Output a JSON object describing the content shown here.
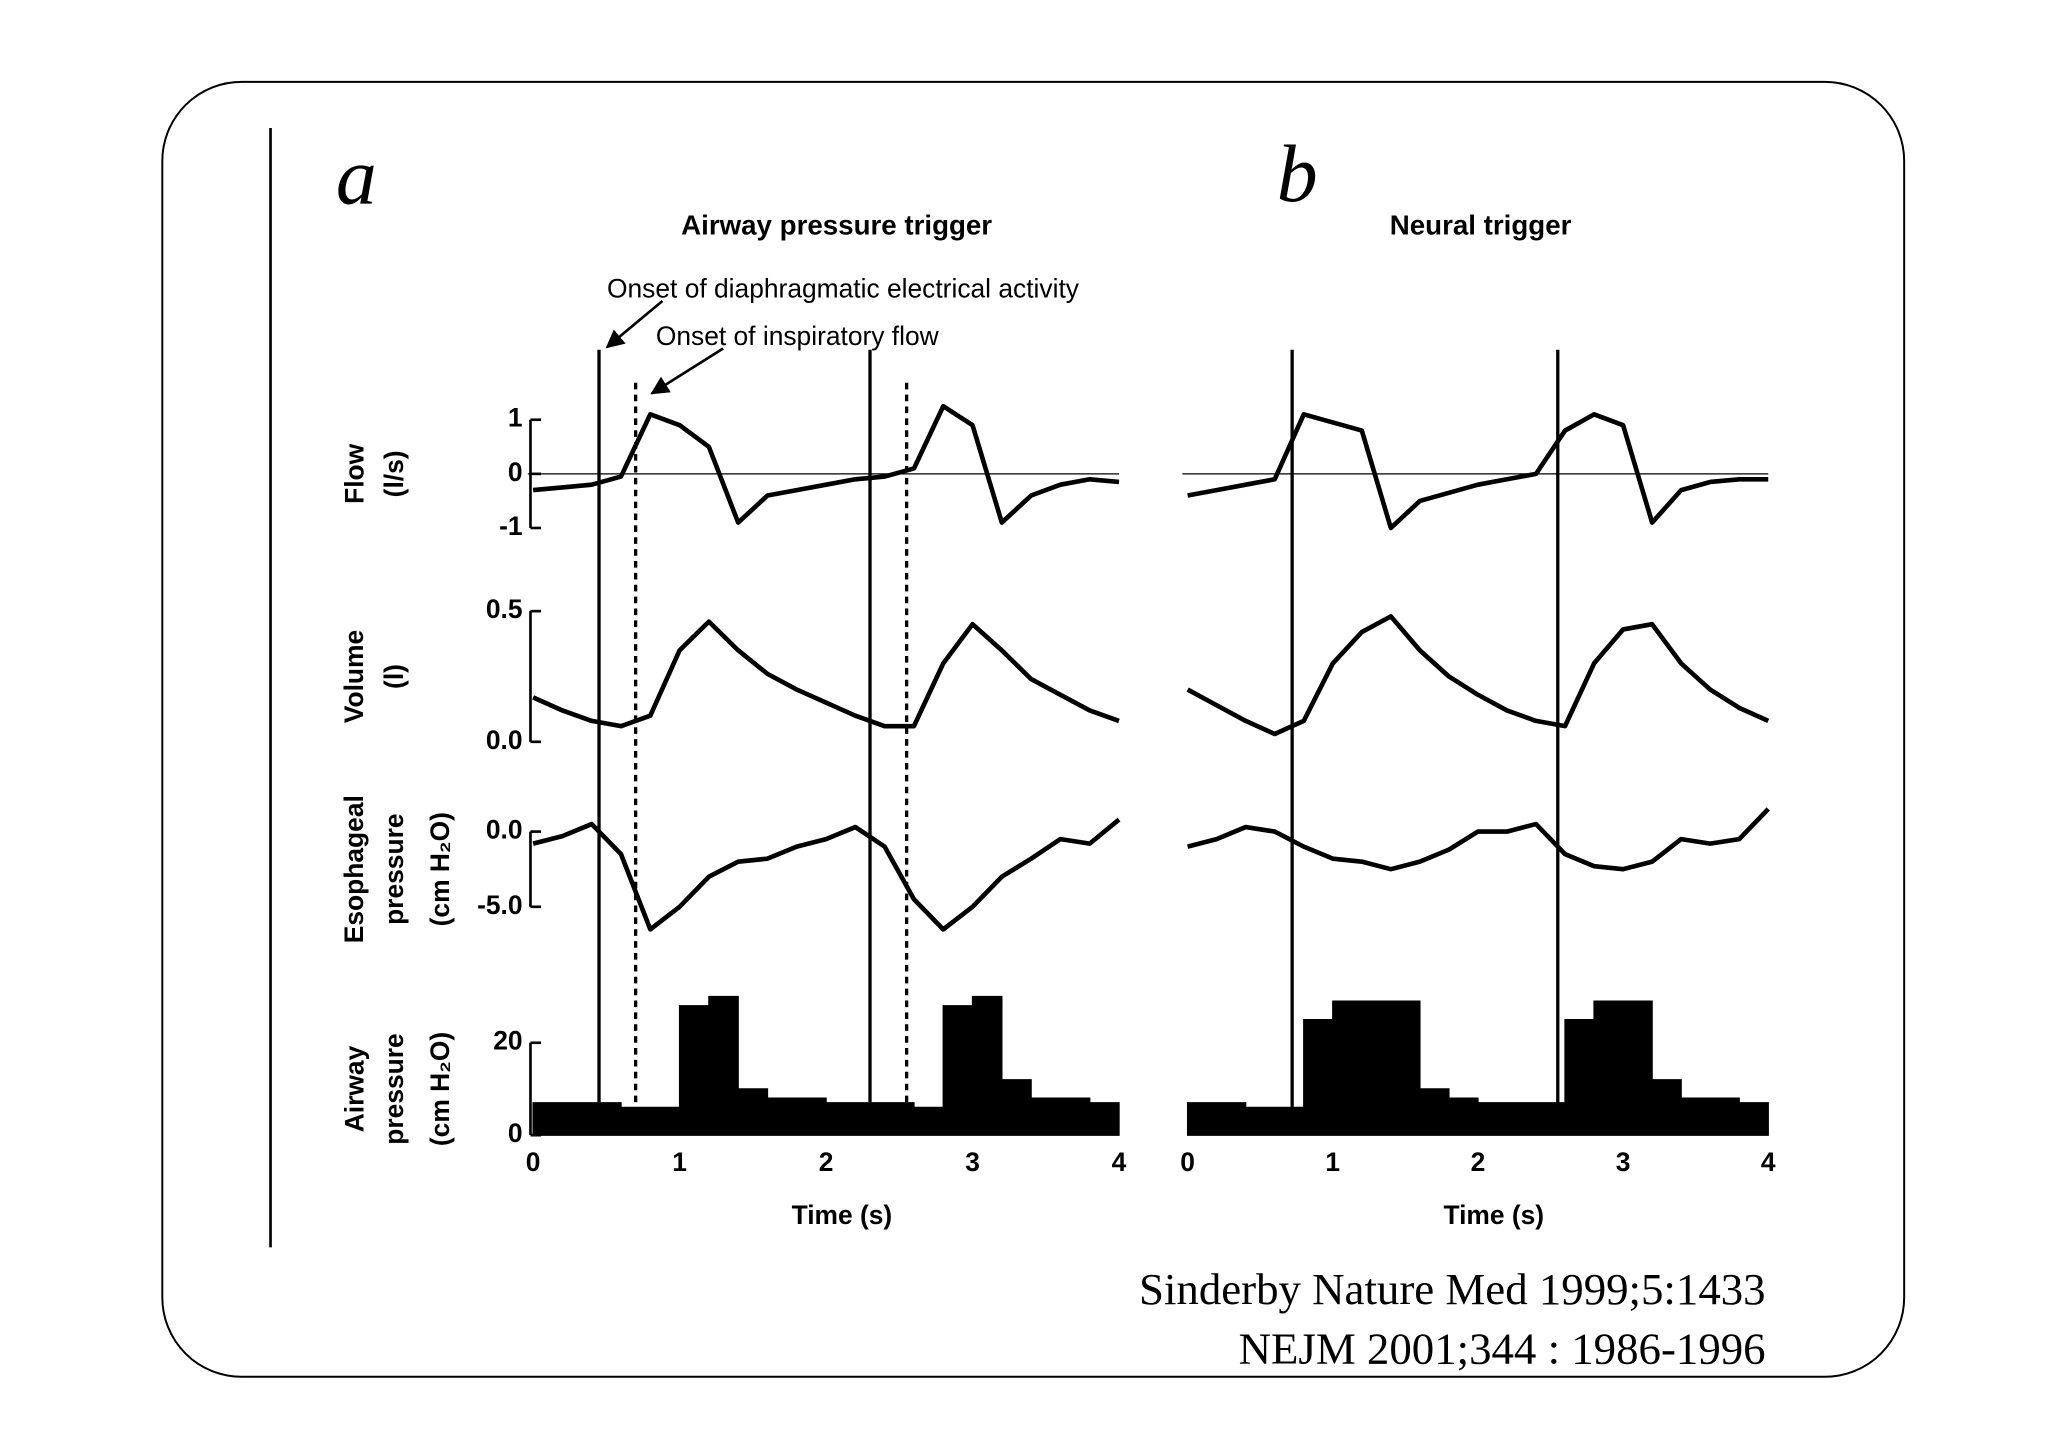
{
  "chart_data": {
    "type": "line",
    "xlim": [
      0,
      4
    ],
    "xticks": [
      0,
      1,
      2,
      3,
      4
    ],
    "xlabel": "Time (s)",
    "x": [
      0,
      0.2,
      0.4,
      0.6,
      0.8,
      1.0,
      1.2,
      1.4,
      1.6,
      1.8,
      2.0,
      2.2,
      2.4,
      2.6,
      2.8,
      3.0,
      3.2,
      3.4,
      3.6,
      3.8,
      4.0
    ],
    "color": "#000000",
    "rows": [
      {
        "label": [
          "Flow",
          "(l/s)"
        ],
        "ylim": [
          -1,
          1
        ],
        "yticks": [
          1,
          0,
          -1
        ],
        "style": "line"
      },
      {
        "label": [
          "Volume",
          "(l)"
        ],
        "ylim": [
          0,
          0.5
        ],
        "yticks": [
          0.5,
          {
            "value": 0,
            "label": "0.0"
          }
        ],
        "style": "line"
      },
      {
        "label": [
          "Esophageal",
          "pressure",
          "(cm H₂O)"
        ],
        "ylim": [
          -5,
          0
        ],
        "yticks": [
          {
            "value": 0,
            "label": "0.0"
          },
          {
            "value": -5,
            "label": "-5.0"
          }
        ],
        "style": "line"
      },
      {
        "label": [
          "Airway",
          "pressure",
          "(cm H₂O)"
        ],
        "ylim": [
          0,
          20
        ],
        "yticks": [
          20,
          0
        ],
        "style": "step-area"
      }
    ],
    "panels": [
      {
        "letter": "a",
        "title": "Airway pressure trigger",
        "series": [
          {
            "values": [
              -0.3,
              -0.25,
              -0.2,
              -0.05,
              1.1,
              0.9,
              0.5,
              -0.9,
              -0.4,
              -0.3,
              -0.2,
              -0.1,
              -0.05,
              0.1,
              1.25,
              0.9,
              -0.9,
              -0.4,
              -0.2,
              -0.1,
              -0.15
            ]
          },
          {
            "values": [
              0.17,
              0.12,
              0.08,
              0.06,
              0.1,
              0.35,
              0.46,
              0.35,
              0.26,
              0.2,
              0.15,
              0.1,
              0.06,
              0.06,
              0.3,
              0.45,
              0.35,
              0.24,
              0.18,
              0.12,
              0.08
            ]
          },
          {
            "values": [
              -0.8,
              -0.3,
              0.5,
              -1.5,
              -6.5,
              -5,
              -3,
              -2,
              -1.8,
              -1,
              -0.5,
              0.3,
              -1.0,
              -4.5,
              -6.5,
              -5,
              -3,
              -1.8,
              -0.5,
              -0.8,
              0.8
            ]
          },
          {
            "values": [
              7,
              7,
              7,
              6,
              6,
              28,
              30,
              10,
              8,
              8,
              7,
              7,
              7,
              6,
              28,
              30,
              12,
              8,
              8,
              7,
              7
            ]
          }
        ],
        "electrical_onsets": [
          0.45,
          2.3
        ],
        "flow_onsets": [
          0.7,
          2.55
        ]
      },
      {
        "letter": "b",
        "title": "Neural trigger",
        "series": [
          {
            "values": [
              -0.4,
              -0.3,
              -0.2,
              -0.1,
              1.1,
              0.95,
              0.8,
              -1.0,
              -0.5,
              -0.35,
              -0.2,
              -0.1,
              0.0,
              0.8,
              1.1,
              0.9,
              -0.9,
              -0.3,
              -0.15,
              -0.1,
              -0.1
            ]
          },
          {
            "values": [
              0.2,
              0.14,
              0.08,
              0.03,
              0.08,
              0.3,
              0.42,
              0.48,
              0.35,
              0.25,
              0.18,
              0.12,
              0.08,
              0.06,
              0.3,
              0.43,
              0.45,
              0.3,
              0.2,
              0.13,
              0.08
            ]
          },
          {
            "values": [
              -1,
              -0.5,
              0.3,
              0,
              -1,
              -1.8,
              -2,
              -2.5,
              -2,
              -1.2,
              0,
              0,
              0.5,
              -1.5,
              -2.3,
              -2.5,
              -2,
              -0.5,
              -0.8,
              -0.5,
              1.5
            ]
          },
          {
            "values": [
              7,
              7,
              6,
              6,
              25,
              29,
              29,
              29,
              10,
              8,
              7,
              7,
              7,
              25,
              29,
              29,
              12,
              8,
              8,
              7,
              7
            ]
          }
        ],
        "electrical_onsets": [
          0.72,
          2.55
        ]
      }
    ],
    "annotations": [
      "Onset of diaphragmatic electrical activity",
      "Onset of inspiratory flow"
    ]
  },
  "citation": [
    "Sinderby Nature Med 1999;5:1433",
    "NEJM 2001;344 : 1986-1996"
  ]
}
